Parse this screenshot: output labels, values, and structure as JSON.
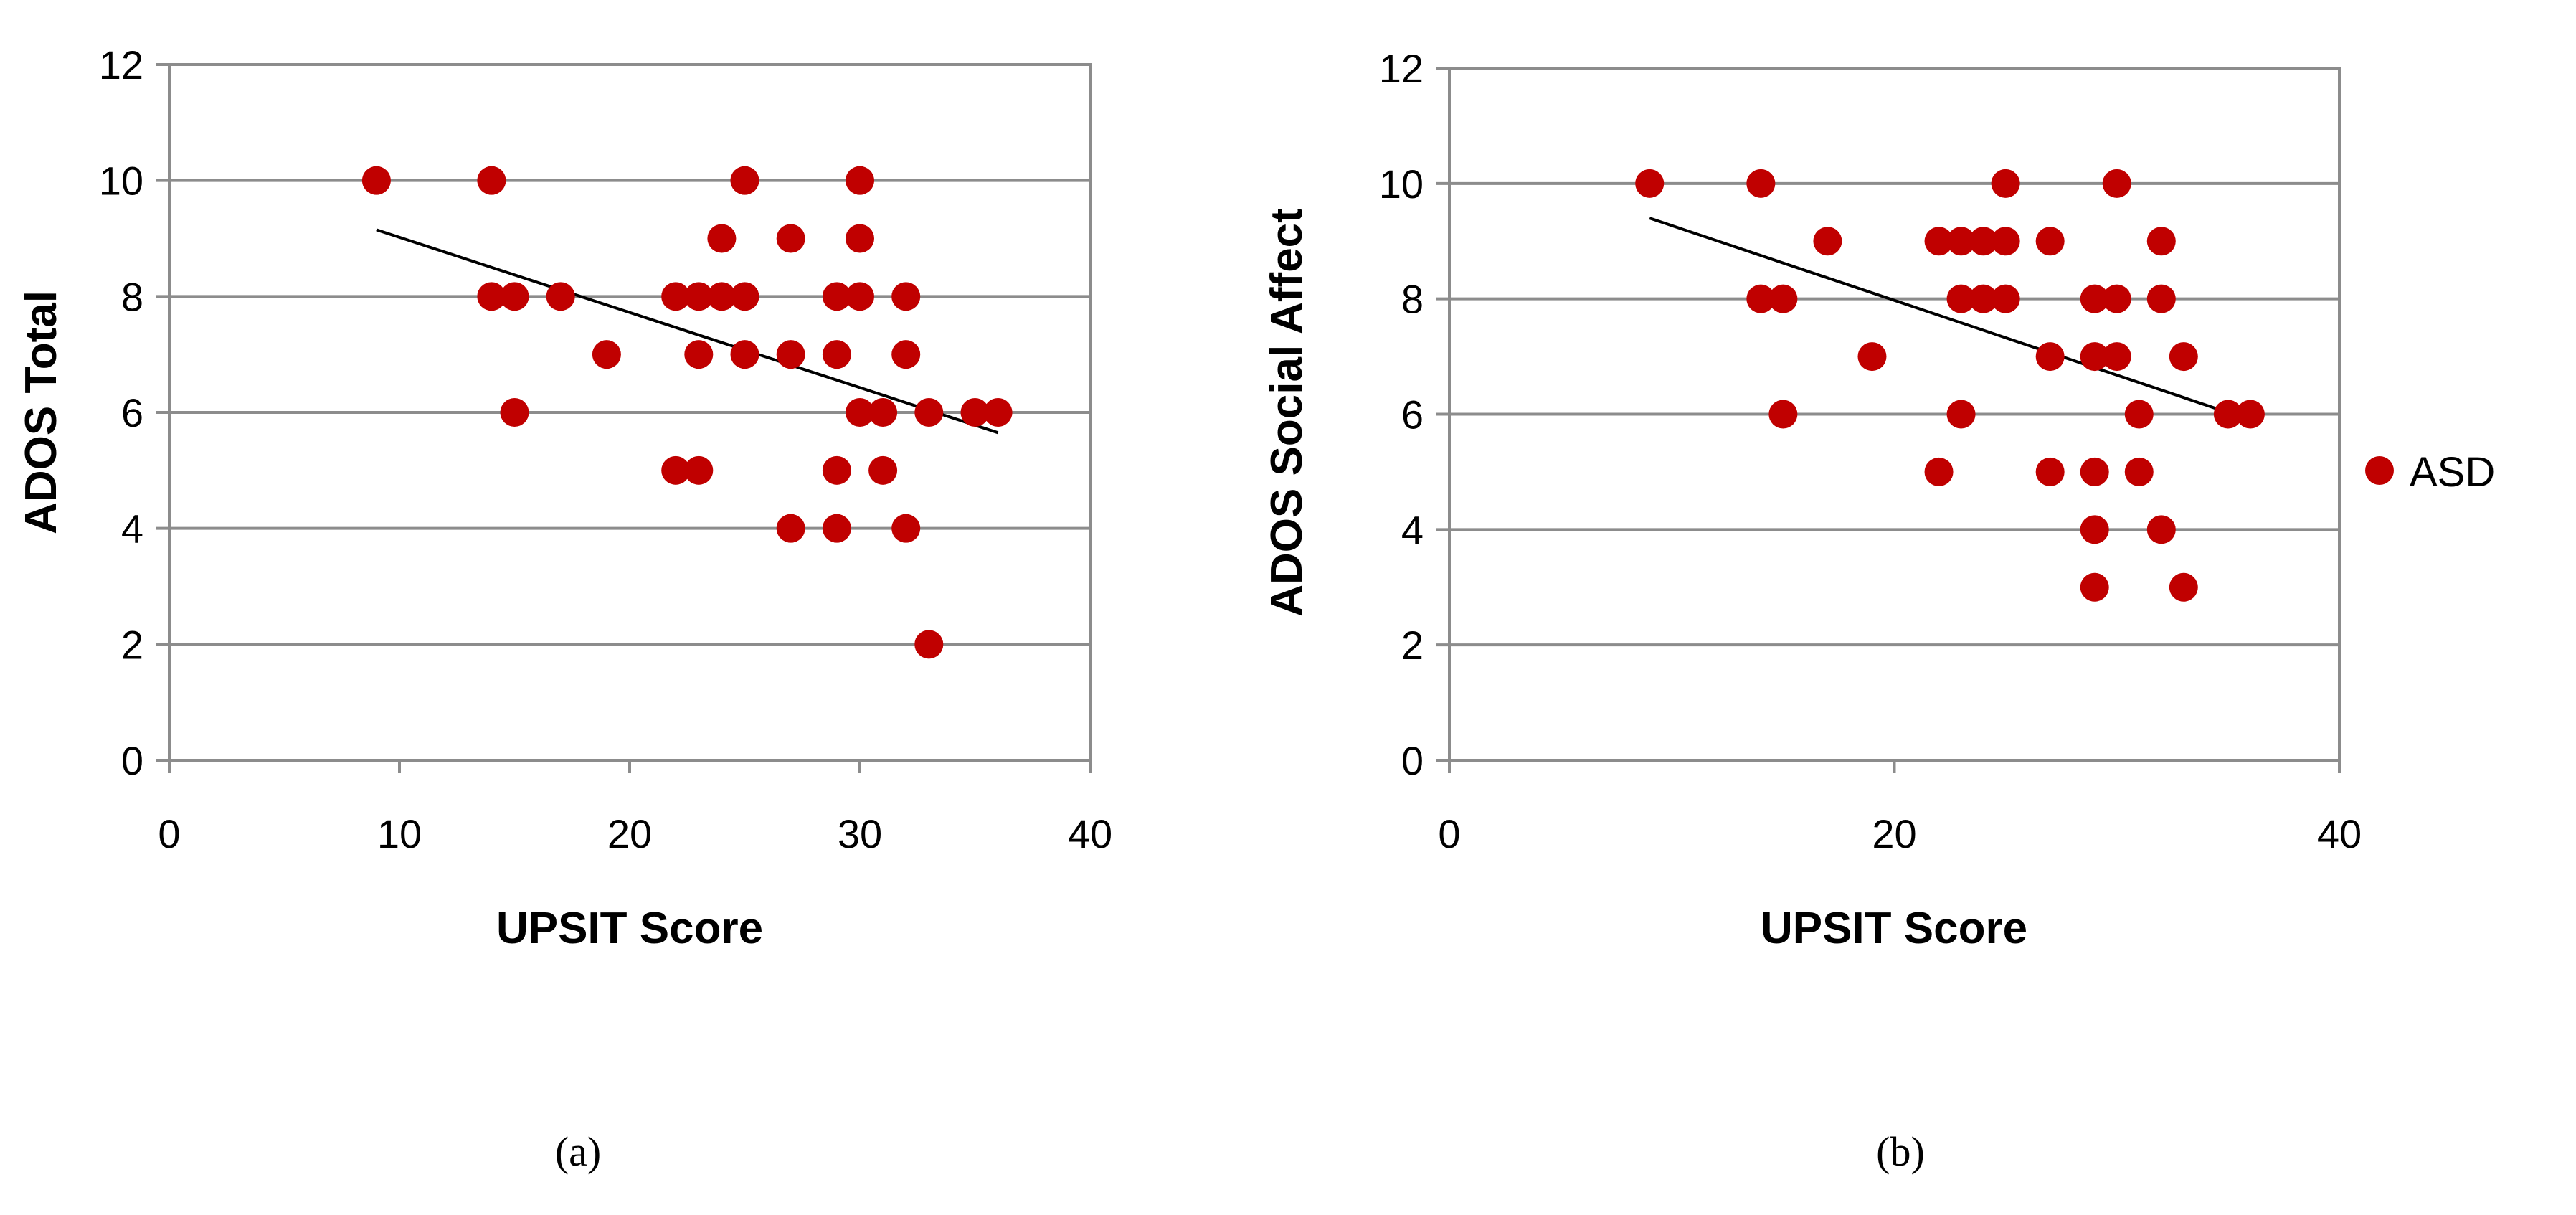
{
  "legend": {
    "label": "ASD",
    "color": "#c00000"
  },
  "chart_data": [
    {
      "type": "scatter",
      "caption": "(a)",
      "xlabel": "UPSIT Score",
      "ylabel": "ADOS Total",
      "xlim": [
        0,
        40
      ],
      "ylim": [
        0,
        12
      ],
      "xticks": [
        0,
        10,
        20,
        30,
        40
      ],
      "yticks": [
        0,
        2,
        4,
        6,
        8,
        10,
        12
      ],
      "grid": "horizontal",
      "series": [
        {
          "name": "ASD",
          "color": "#c00000",
          "points": [
            [
              9,
              10
            ],
            [
              14,
              10
            ],
            [
              14,
              8
            ],
            [
              15,
              8
            ],
            [
              15,
              6
            ],
            [
              17,
              8
            ],
            [
              19,
              7
            ],
            [
              22,
              8
            ],
            [
              22,
              5
            ],
            [
              23,
              8
            ],
            [
              23,
              7
            ],
            [
              23,
              5
            ],
            [
              24,
              9
            ],
            [
              24,
              8
            ],
            [
              25,
              10
            ],
            [
              25,
              8
            ],
            [
              25,
              7
            ],
            [
              27,
              9
            ],
            [
              27,
              7
            ],
            [
              27,
              4
            ],
            [
              29,
              8
            ],
            [
              29,
              7
            ],
            [
              29,
              5
            ],
            [
              29,
              4
            ],
            [
              30,
              10
            ],
            [
              30,
              9
            ],
            [
              30,
              8
            ],
            [
              30,
              6
            ],
            [
              31,
              6
            ],
            [
              31,
              5
            ],
            [
              32,
              8
            ],
            [
              32,
              7
            ],
            [
              32,
              4
            ],
            [
              33,
              6
            ],
            [
              33,
              2
            ],
            [
              35,
              6
            ],
            [
              36,
              6
            ]
          ]
        }
      ],
      "trendline": {
        "x": [
          9,
          36
        ],
        "y": [
          9.15,
          5.65
        ]
      }
    },
    {
      "type": "scatter",
      "caption": "(b)",
      "xlabel": "UPSIT Score",
      "ylabel": "ADOS Social Affect",
      "xlim": [
        0,
        40
      ],
      "ylim": [
        0,
        12
      ],
      "xticks": [
        0,
        20,
        40
      ],
      "yticks": [
        0,
        2,
        4,
        6,
        8,
        10,
        12
      ],
      "grid": "horizontal",
      "series": [
        {
          "name": "ASD",
          "color": "#c00000",
          "points": [
            [
              9,
              10
            ],
            [
              14,
              10
            ],
            [
              14,
              8
            ],
            [
              15,
              8
            ],
            [
              15,
              6
            ],
            [
              17,
              9
            ],
            [
              19,
              7
            ],
            [
              22,
              9
            ],
            [
              22,
              5
            ],
            [
              23,
              9
            ],
            [
              23,
              8
            ],
            [
              23,
              6
            ],
            [
              24,
              9
            ],
            [
              24,
              8
            ],
            [
              25,
              10
            ],
            [
              25,
              9
            ],
            [
              25,
              8
            ],
            [
              27,
              9
            ],
            [
              27,
              7
            ],
            [
              27,
              5
            ],
            [
              29,
              8
            ],
            [
              29,
              7
            ],
            [
              29,
              5
            ],
            [
              29,
              4
            ],
            [
              29,
              3
            ],
            [
              30,
              10
            ],
            [
              30,
              8
            ],
            [
              30,
              7
            ],
            [
              31,
              6
            ],
            [
              31,
              5
            ],
            [
              32,
              9
            ],
            [
              32,
              8
            ],
            [
              32,
              4
            ],
            [
              33,
              7
            ],
            [
              33,
              3
            ],
            [
              35,
              6
            ],
            [
              36,
              6
            ]
          ]
        }
      ],
      "trendline": {
        "x": [
          9,
          36
        ],
        "y": [
          9.4,
          5.9
        ]
      }
    }
  ]
}
